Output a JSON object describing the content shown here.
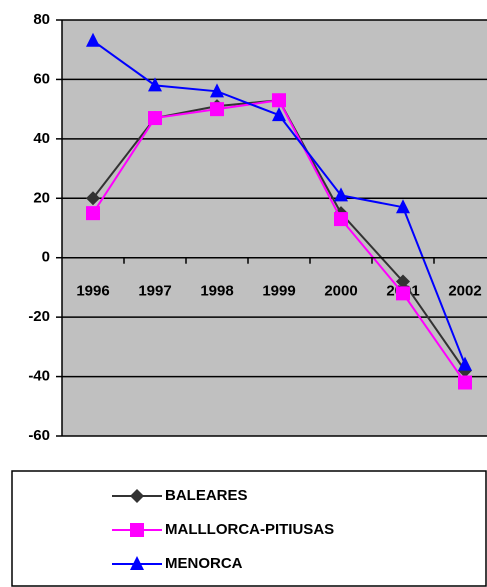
{
  "chart_data": {
    "type": "line",
    "categories": [
      "1996",
      "1997",
      "1998",
      "1999",
      "2000",
      "2001",
      "2002"
    ],
    "series": [
      {
        "name": "BALEARES",
        "color": "#333333",
        "marker": "diamond",
        "values": [
          20,
          47,
          51,
          53,
          15,
          -8,
          -38
        ]
      },
      {
        "name": "MALLLORCA-PITIUSAS",
        "color": "#ff00ff",
        "marker": "square",
        "values": [
          15,
          47,
          50,
          53,
          13,
          -12,
          -42
        ]
      },
      {
        "name": "MENORCA",
        "color": "#0000ff",
        "marker": "triangle",
        "values": [
          73,
          58,
          56,
          48,
          21,
          17,
          -36
        ]
      }
    ],
    "ylim": [
      -60,
      80
    ],
    "yticks": [
      -60,
      -40,
      -20,
      0,
      20,
      40,
      60,
      80
    ],
    "grid": true,
    "legend": "bottom"
  }
}
